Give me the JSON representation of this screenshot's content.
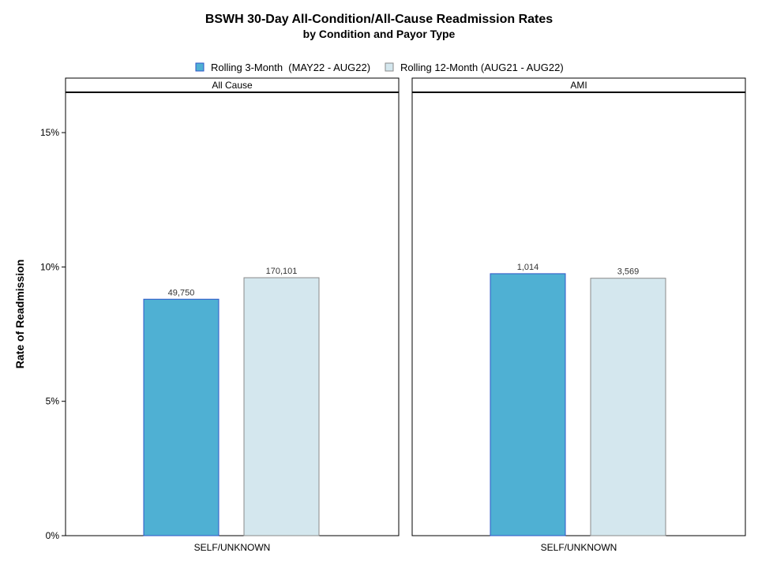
{
  "chart_data": {
    "type": "bar",
    "title": "BSWH 30-Day All-Condition/All-Cause Readmission Rates",
    "subtitle": "by Condition and Payor Type",
    "ylabel": "Rate of Readmission",
    "ylim": [
      0,
      0.165
    ],
    "yticks": [
      0,
      0.05,
      0.1,
      0.15
    ],
    "ytick_labels": [
      "0%",
      "5%",
      "10%",
      "15%"
    ],
    "grid": false,
    "legend": {
      "placement": "top-center",
      "entries": [
        {
          "label": "Rolling 3-Month  (MAY22 - AUG22)",
          "color": "#4fb0d3",
          "border": "#2e56c8"
        },
        {
          "label": "Rolling 12-Month (AUG21 - AUG22)",
          "color": "#d4e7ee",
          "border": "#8a8a8a"
        }
      ]
    },
    "panels": [
      {
        "title": "All Cause",
        "categories": [
          "SELF/UNKNOWN"
        ],
        "series": [
          {
            "name": "Rolling 3-Month  (MAY22 - AUG22)",
            "values": [
              0.088
            ],
            "labels": [
              "49,750"
            ]
          },
          {
            "name": "Rolling 12-Month (AUG21 - AUG22)",
            "values": [
              0.096
            ],
            "labels": [
              "170,101"
            ]
          }
        ]
      },
      {
        "title": "AMI",
        "categories": [
          "SELF/UNKNOWN"
        ],
        "series": [
          {
            "name": "Rolling 3-Month  (MAY22 - AUG22)",
            "values": [
              0.0975
            ],
            "labels": [
              "1,014"
            ]
          },
          {
            "name": "Rolling 12-Month (AUG21 - AUG22)",
            "values": [
              0.0958
            ],
            "labels": [
              "3,569"
            ]
          }
        ]
      }
    ]
  }
}
